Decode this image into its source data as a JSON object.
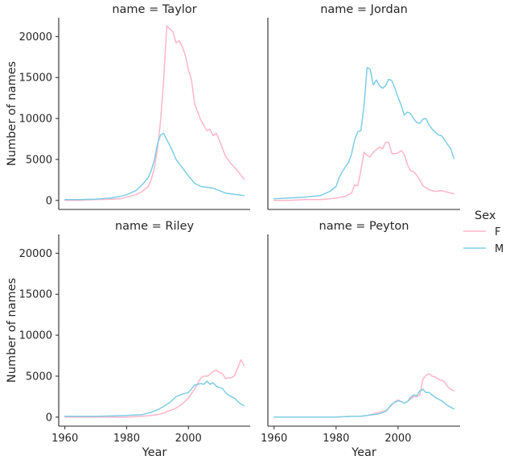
{
  "chart_data": {
    "type": "line",
    "facet_label_template": "name = {name}",
    "x_label": "Year",
    "y_label": "Number of names",
    "x_ticks": [
      1960,
      1980,
      2000
    ],
    "y_ticks": [
      0,
      5000,
      10000,
      15000,
      20000
    ],
    "xlim": [
      1958,
      2020
    ],
    "ylim": [
      -1100,
      22300
    ],
    "legend": {
      "title": "Sex",
      "placement": "right",
      "entries": [
        {
          "label": "F",
          "color": "#ffb6c8"
        },
        {
          "label": "M",
          "color": "#7ecde6"
        }
      ]
    },
    "panels": [
      {
        "name": "Taylor",
        "title": "name = Taylor",
        "series": [
          {
            "name": "F",
            "color": "#ffb6c8",
            "x": [
              1960,
              1965,
              1970,
              1975,
              1978,
              1980,
              1983,
              1985,
              1987,
              1988,
              1989,
              1990,
              1991,
              1992,
              1993,
              1994,
              1995,
              1996,
              1997,
              1998,
              1999,
              2000,
              2001,
              2002,
              2004,
              2006,
              2007,
              2008,
              2009,
              2010,
              2012,
              2014,
              2016,
              2018
            ],
            "y": [
              0,
              0,
              100,
              150,
              200,
              400,
              700,
              1100,
              1700,
              2600,
              4000,
              6300,
              9800,
              14800,
              21300,
              20900,
              20600,
              19200,
              19500,
              18800,
              17700,
              16000,
              14700,
              11800,
              9800,
              8500,
              8700,
              7900,
              8200,
              7400,
              5400,
              4400,
              3600,
              2600
            ]
          },
          {
            "name": "M",
            "color": "#7ecde6",
            "x": [
              1960,
              1965,
              1970,
              1975,
              1978,
              1980,
              1983,
              1985,
              1987,
              1988,
              1989,
              1990,
              1991,
              1992,
              1993,
              1994,
              1995,
              1996,
              1998,
              2000,
              2002,
              2004,
              2006,
              2008,
              2010,
              2012,
              2014,
              2016,
              2018
            ],
            "y": [
              100,
              100,
              150,
              300,
              500,
              700,
              1200,
              1900,
              2800,
              3700,
              5000,
              6900,
              8000,
              8200,
              7400,
              6700,
              5900,
              5000,
              4000,
              3000,
              2100,
              1700,
              1600,
              1500,
              1200,
              900,
              800,
              700,
              600
            ]
          }
        ]
      },
      {
        "name": "Jordan",
        "title": "name = Jordan",
        "series": [
          {
            "name": "F",
            "color": "#ffb6c8",
            "x": [
              1960,
              1965,
              1970,
              1975,
              1978,
              1980,
              1983,
              1985,
              1986,
              1987,
              1988,
              1989,
              1990,
              1991,
              1992,
              1993,
              1994,
              1995,
              1996,
              1997,
              1998,
              1999,
              2000,
              2001,
              2002,
              2003,
              2004,
              2005,
              2006,
              2007,
              2008,
              2010,
              2012,
              2014,
              2016,
              2018
            ],
            "y": [
              0,
              0,
              100,
              100,
              200,
              300,
              500,
              900,
              1900,
              1800,
              3600,
              5900,
              5500,
              5300,
              5900,
              6200,
              6500,
              6300,
              7100,
              7100,
              5700,
              5700,
              5800,
              6100,
              5600,
              4400,
              3600,
              3500,
              3100,
              2500,
              1800,
              1300,
              1100,
              1200,
              1000,
              800
            ]
          },
          {
            "name": "M",
            "color": "#7ecde6",
            "x": [
              1960,
              1965,
              1970,
              1975,
              1978,
              1980,
              1981,
              1982,
              1983,
              1984,
              1985,
              1986,
              1987,
              1988,
              1989,
              1990,
              1991,
              1992,
              1993,
              1994,
              1995,
              1996,
              1997,
              1998,
              1999,
              2000,
              2001,
              2002,
              2003,
              2004,
              2005,
              2006,
              2007,
              2008,
              2009,
              2010,
              2011,
              2012,
              2013,
              2014,
              2015,
              2016,
              2017,
              2018
            ],
            "y": [
              200,
              300,
              400,
              600,
              1100,
              1700,
              2800,
              3500,
              4100,
              4600,
              5700,
              7400,
              8400,
              8500,
              11500,
              16200,
              16000,
              14100,
              14700,
              14000,
              13700,
              14000,
              14800,
              14600,
              13700,
              12600,
              11600,
              10400,
              10800,
              10600,
              10000,
              9500,
              9400,
              9900,
              10000,
              9200,
              8700,
              8300,
              8000,
              7900,
              7400,
              6800,
              6300,
              5100
            ]
          }
        ]
      },
      {
        "name": "Riley",
        "title": "name = Riley",
        "series": [
          {
            "name": "F",
            "color": "#ffb6c8",
            "x": [
              1960,
              1970,
              1980,
              1985,
              1988,
              1990,
              1992,
              1994,
              1996,
              1998,
              2000,
              2002,
              2003,
              2004,
              2005,
              2006,
              2007,
              2008,
              2009,
              2010,
              2011,
              2012,
              2013,
              2014,
              2015,
              2016,
              2017,
              2018
            ],
            "y": [
              0,
              0,
              0,
              100,
              200,
              300,
              500,
              800,
              1100,
              1600,
              2300,
              3400,
              4100,
              4800,
              5000,
              5000,
              5200,
              5600,
              5700,
              5500,
              5300,
              4700,
              4800,
              4800,
              5100,
              6000,
              7000,
              6300
            ]
          },
          {
            "name": "M",
            "color": "#7ecde6",
            "x": [
              1960,
              1970,
              1980,
              1985,
              1988,
              1990,
              1992,
              1994,
              1996,
              1998,
              2000,
              2002,
              2004,
              2005,
              2006,
              2007,
              2008,
              2009,
              2010,
              2011,
              2012,
              2013,
              2014,
              2015,
              2016,
              2017,
              2018
            ],
            "y": [
              100,
              100,
              200,
              300,
              600,
              900,
              1300,
              1800,
              2500,
              2800,
              3000,
              3900,
              4100,
              4000,
              4400,
              4000,
              4200,
              3800,
              3600,
              3500,
              3000,
              2700,
              2500,
              2300,
              1900,
              1600,
              1400
            ]
          }
        ]
      },
      {
        "name": "Peyton",
        "title": "name = Peyton",
        "series": [
          {
            "name": "F",
            "color": "#ffb6c8",
            "x": [
              1960,
              1970,
              1980,
              1985,
              1988,
              1990,
              1992,
              1994,
              1996,
              1997,
              1998,
              1999,
              2000,
              2001,
              2002,
              2003,
              2004,
              2005,
              2006,
              2007,
              2008,
              2009,
              2010,
              2011,
              2012,
              2013,
              2014,
              2015,
              2016,
              2017,
              2018
            ],
            "y": [
              0,
              0,
              0,
              100,
              100,
              200,
              400,
              600,
              800,
              1100,
              1500,
              1900,
              2100,
              1900,
              1700,
              1900,
              2200,
              2500,
              2500,
              2700,
              4600,
              5100,
              5300,
              5000,
              4900,
              4600,
              4500,
              4300,
              3700,
              3400,
              3200
            ]
          },
          {
            "name": "M",
            "color": "#7ecde6",
            "x": [
              1960,
              1970,
              1980,
              1985,
              1988,
              1990,
              1992,
              1994,
              1996,
              1997,
              1998,
              1999,
              2000,
              2001,
              2002,
              2003,
              2004,
              2005,
              2006,
              2007,
              2008,
              2009,
              2010,
              2011,
              2012,
              2013,
              2014,
              2015,
              2016,
              2017,
              2018
            ],
            "y": [
              0,
              0,
              0,
              100,
              100,
              200,
              300,
              400,
              700,
              1100,
              1600,
              1800,
              2000,
              1900,
              1700,
              1900,
              2400,
              2700,
              2600,
              3200,
              3400,
              3000,
              3000,
              2700,
              2400,
              2200,
              2000,
              1700,
              1400,
              1200,
              1000
            ]
          }
        ]
      }
    ]
  }
}
